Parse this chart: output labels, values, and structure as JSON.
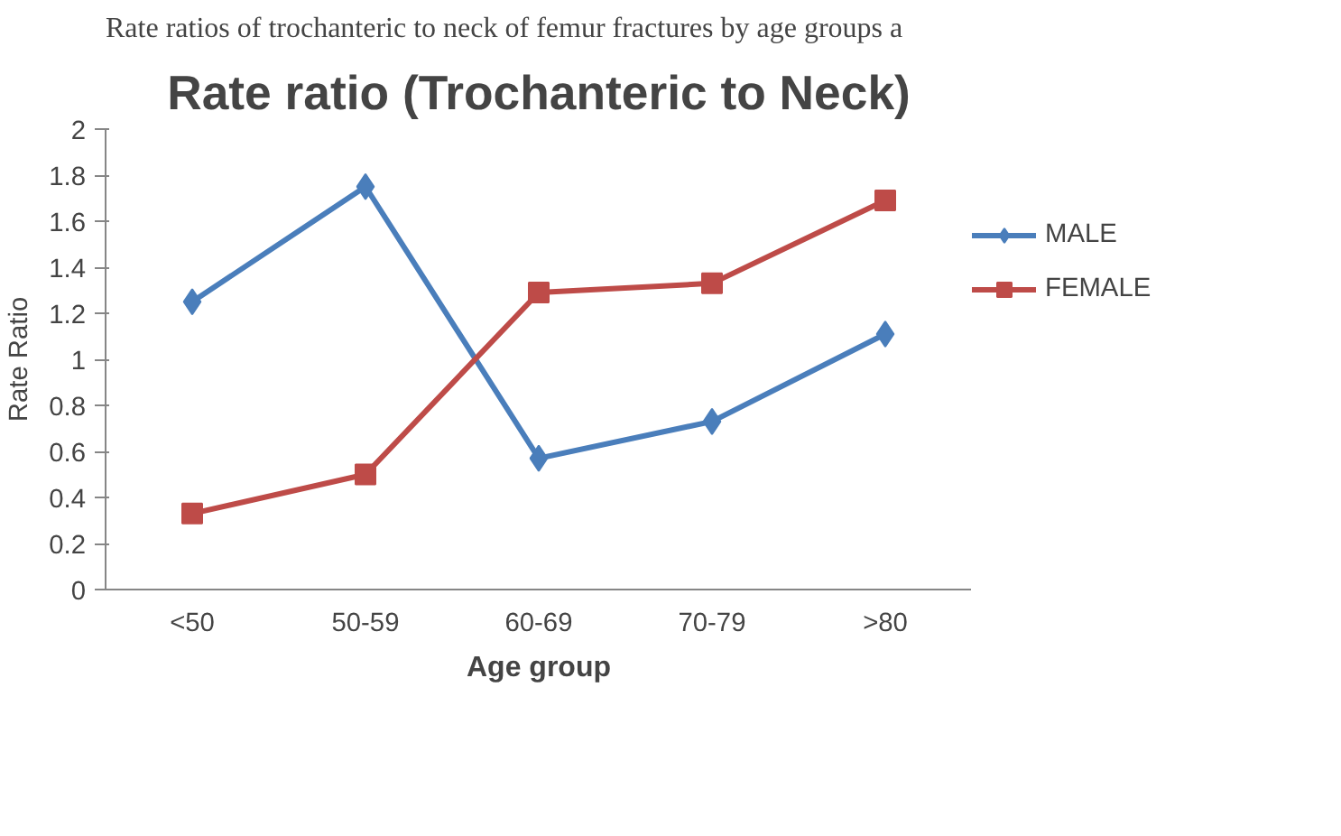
{
  "chart_data": {
    "type": "line",
    "title": "Rate ratio (Trochanteric to Neck)",
    "xlabel": "Age group",
    "ylabel": "Rate Ratio",
    "annotations": [
      "Rate ratios of trochanteric to neck of femur fractures by age groups a"
    ],
    "categories": [
      "<50",
      "50-59",
      "60-69",
      "70-79",
      ">80"
    ],
    "series": [
      {
        "name": "MALE",
        "color": "#4a7ebb",
        "marker": "diamond",
        "values": [
          1.25,
          1.75,
          0.57,
          0.73,
          1.11
        ]
      },
      {
        "name": "FEMALE",
        "color": "#be4b48",
        "marker": "square",
        "values": [
          0.33,
          0.5,
          1.29,
          1.33,
          1.69
        ]
      }
    ],
    "ylim": [
      0,
      2
    ],
    "yticks": [
      0,
      {
        "value": 0.2,
        "label": "0.2"
      },
      {
        "value": 0.4,
        "label": "0.4"
      },
      {
        "value": 0.6,
        "label": "0.6"
      },
      {
        "value": 0.8,
        "label": "0.8"
      },
      1,
      {
        "value": 1.2,
        "label": "1.2"
      },
      {
        "value": 1.4,
        "label": "1.4"
      },
      {
        "value": 1.6,
        "label": "1.6"
      },
      {
        "value": 1.8,
        "label": "1.8"
      },
      2
    ],
    "grid": false,
    "legend": "right",
    "line_style": "solid"
  }
}
